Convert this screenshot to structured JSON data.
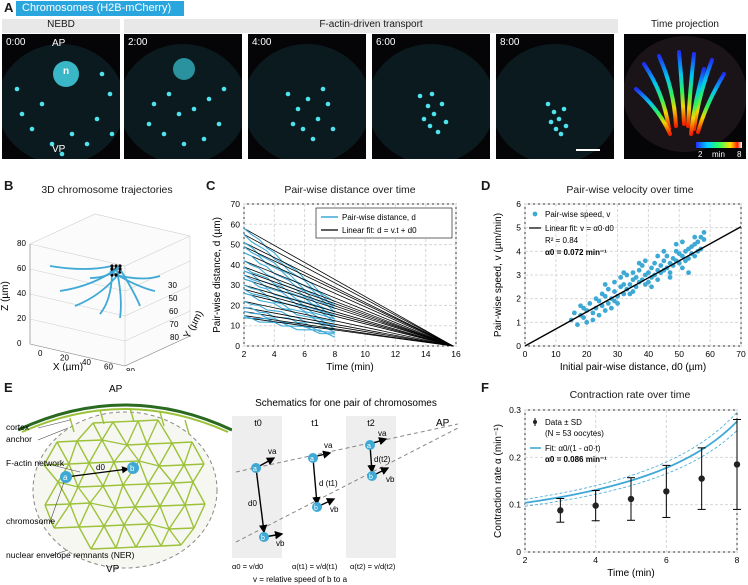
{
  "panelA": {
    "letter": "A",
    "header": "Chromosomes (H2B-mCherry)",
    "stages": [
      "NEBD",
      "F-actin-driven transport",
      "Time projection"
    ],
    "times": [
      "0:00",
      "2:00",
      "4:00",
      "6:00",
      "8:00"
    ],
    "ap": "AP",
    "vp": "VP",
    "nucleus": "n",
    "colorbar": {
      "min": "2",
      "unit": "min",
      "max": "8"
    }
  },
  "panelB": {
    "letter": "B",
    "title": "3D chromosome trajectories",
    "zlabel": "Z (µm)",
    "xlabel": "X (µm)",
    "ylabel": "Y (µm)",
    "xticks": [
      "0",
      "20",
      "40",
      "60",
      "80"
    ],
    "zticks": [
      "0",
      "20",
      "40",
      "60",
      "80"
    ],
    "yticks": [
      "30",
      "50",
      "60",
      "70",
      "80"
    ]
  },
  "panelE": {
    "letter": "E",
    "ap": "AP",
    "vp": "VP",
    "labels": [
      "cortex",
      "anchor",
      "F-actin network",
      "chromosome",
      "nuclear envelope remnants (NER)"
    ],
    "schematic_title": "Schematics for one pair of chromosomes",
    "times": [
      "t0",
      "t1",
      "t2"
    ],
    "ap_right": "AP",
    "d_labels": [
      "d0",
      "d (t1)",
      "d(t2)"
    ],
    "velocity_labels": [
      "va",
      "vb"
    ],
    "node_labels": [
      "a",
      "b"
    ],
    "formulas": [
      "α0 = v/d0",
      "α(t1) = v/d(t1)",
      "α(t2) = v/d(t2)"
    ],
    "footnote": "v = relative speed of b to a"
  },
  "charts": {
    "C": {
      "letter": "C",
      "title": "Pair-wise distance over time",
      "legend": [
        "Pair-wise distance, d",
        "Linear fit: d = v.t + d0"
      ]
    },
    "D": {
      "letter": "D",
      "title": "Pair-wise velocity over time",
      "legend": [
        "Pair-wise speed, v",
        "Linear fit: v = α0·d0",
        "R² = 0.84",
        "α0 = 0.072 min⁻¹"
      ]
    },
    "F": {
      "letter": "F",
      "title": "Contraction rate over time",
      "legend": [
        "Data ± SD",
        "(N = 53 oocytes)",
        "Fit: α0/(1 - α0·t)",
        "α0 = 0.086 min⁻¹"
      ]
    }
  },
  "chart_data": [
    {
      "type": "line",
      "title": "Pair-wise distance over time",
      "xlabel": "Time (min)",
      "ylabel": "Pair-wise distance, d (µm)",
      "xlim": [
        2,
        16
      ],
      "ylim": [
        0,
        70
      ],
      "xticks": [
        2,
        4,
        6,
        8,
        10,
        12,
        14,
        16
      ],
      "yticks": [
        0,
        10,
        20,
        30,
        40,
        50,
        60,
        70
      ],
      "grid": true,
      "legend_position": "top-right",
      "series": [
        {
          "name": "Pair-wise distance, d",
          "x": [
            2,
            8
          ],
          "d0": [
            58,
            55,
            51,
            49,
            46,
            42,
            39,
            37,
            35,
            33,
            30,
            28,
            26,
            22,
            19,
            17,
            15,
            14
          ],
          "d8": [
            21,
            20,
            19,
            18,
            17,
            16,
            15,
            14,
            13,
            12,
            11,
            10,
            9,
            8,
            7,
            6,
            6,
            5
          ]
        },
        {
          "name": "Linear fit: d = v.t + d0",
          "x_end": 15.8
        }
      ]
    },
    {
      "type": "scatter",
      "title": "Pair-wise velocity over time",
      "xlabel": "Initial pair-wise distance, d0 (µm)",
      "ylabel": "Pair-wise speed, v (µm/min)",
      "xlim": [
        0,
        70
      ],
      "ylim": [
        0,
        6
      ],
      "xticks": [
        0,
        10,
        20,
        30,
        40,
        50,
        60,
        70
      ],
      "yticks": [
        0,
        1,
        2,
        3,
        4,
        5,
        6
      ],
      "grid": true,
      "legend_position": "top-left",
      "fit": {
        "slope": 0.072
      },
      "points": [
        [
          15,
          1.1
        ],
        [
          16,
          1.4
        ],
        [
          17,
          0.9
        ],
        [
          18,
          1.3
        ],
        [
          18,
          1.7
        ],
        [
          19,
          1.2
        ],
        [
          20,
          1.5
        ],
        [
          20,
          1.0
        ],
        [
          21,
          1.8
        ],
        [
          22,
          1.4
        ],
        [
          23,
          1.6
        ],
        [
          23,
          2.0
        ],
        [
          24,
          1.3
        ],
        [
          24,
          1.9
        ],
        [
          25,
          1.7
        ],
        [
          25,
          2.2
        ],
        [
          26,
          1.5
        ],
        [
          26,
          2.1
        ],
        [
          27,
          1.8
        ],
        [
          27,
          2.4
        ],
        [
          28,
          2.0
        ],
        [
          28,
          1.6
        ],
        [
          29,
          2.3
        ],
        [
          29,
          2.7
        ],
        [
          30,
          2.1
        ],
        [
          30,
          1.8
        ],
        [
          31,
          2.5
        ],
        [
          31,
          2.9
        ],
        [
          32,
          2.2
        ],
        [
          32,
          2.6
        ],
        [
          33,
          2.4
        ],
        [
          33,
          3.0
        ],
        [
          34,
          2.6
        ],
        [
          34,
          2.2
        ],
        [
          35,
          2.8
        ],
        [
          35,
          3.1
        ],
        [
          36,
          2.5
        ],
        [
          36,
          2.9
        ],
        [
          37,
          2.7
        ],
        [
          37,
          3.2
        ],
        [
          38,
          2.8
        ],
        [
          38,
          3.4
        ],
        [
          39,
          2.6
        ],
        [
          39,
          3.0
        ],
        [
          40,
          3.1
        ],
        [
          40,
          2.7
        ],
        [
          41,
          3.3
        ],
        [
          41,
          2.9
        ],
        [
          42,
          3.0
        ],
        [
          42,
          3.5
        ],
        [
          43,
          3.2
        ],
        [
          43,
          2.8
        ],
        [
          44,
          3.4
        ],
        [
          44,
          3.1
        ],
        [
          45,
          3.6
        ],
        [
          45,
          3.2
        ],
        [
          46,
          3.3
        ],
        [
          46,
          3.8
        ],
        [
          47,
          3.5
        ],
        [
          47,
          3.1
        ],
        [
          48,
          3.7
        ],
        [
          48,
          3.4
        ],
        [
          49,
          3.6
        ],
        [
          49,
          4.0
        ],
        [
          50,
          3.5
        ],
        [
          50,
          3.9
        ],
        [
          51,
          3.8
        ],
        [
          51,
          3.3
        ],
        [
          52,
          4.0
        ],
        [
          52,
          3.6
        ],
        [
          53,
          4.1
        ],
        [
          53,
          3.7
        ],
        [
          54,
          4.2
        ],
        [
          54,
          3.9
        ],
        [
          55,
          4.3
        ],
        [
          55,
          3.8
        ],
        [
          56,
          4.4
        ],
        [
          56,
          4.0
        ],
        [
          57,
          4.6
        ],
        [
          57,
          4.1
        ],
        [
          58,
          4.5
        ],
        [
          58,
          4.8
        ],
        [
          53,
          3.1
        ],
        [
          47,
          2.9
        ],
        [
          41,
          2.5
        ],
        [
          35,
          2.3
        ],
        [
          29,
          1.9
        ],
        [
          22,
          1.1
        ],
        [
          37,
          3.5
        ],
        [
          45,
          4.0
        ],
        [
          51,
          4.4
        ],
        [
          55,
          4.6
        ],
        [
          32,
          3.1
        ],
        [
          26,
          2.6
        ],
        [
          19,
          1.6
        ],
        [
          43,
          3.8
        ],
        [
          49,
          4.3
        ],
        [
          39,
          3.6
        ]
      ]
    },
    {
      "type": "line",
      "title": "Contraction rate over time",
      "xlabel": "Time (min)",
      "ylabel": "Contraction rate α (min⁻¹)",
      "xlim": [
        2,
        8
      ],
      "ylim": [
        0,
        0.3
      ],
      "xticks": [
        2,
        4,
        6,
        8
      ],
      "yticks": [
        0,
        0.1,
        0.2,
        0.3
      ],
      "grid": true,
      "legend_position": "top-left",
      "series": [
        {
          "name": "Data ± SD",
          "x": [
            3,
            4,
            5,
            6,
            7,
            8
          ],
          "y": [
            0.088,
            0.098,
            0.112,
            0.128,
            0.155,
            0.185
          ],
          "sd": [
            0.025,
            0.032,
            0.045,
            0.055,
            0.065,
            0.095
          ]
        },
        {
          "name": "Fit: α0/(1 - α0·t)",
          "alpha0": 0.086
        }
      ]
    }
  ],
  "colors": {
    "cyan": "#3fa9d6",
    "header_bg": "#2aa6df",
    "green": "#9cc23a",
    "fit_black": "#000000"
  }
}
